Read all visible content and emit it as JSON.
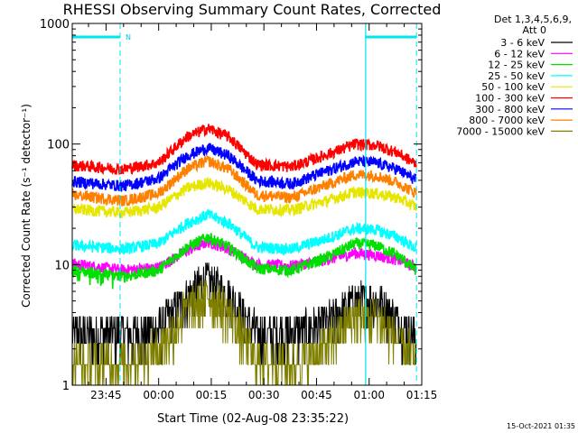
{
  "chart_data": {
    "type": "line",
    "title": "RHESSI Observing Summary Count Rates, Corrected",
    "xlabel": "Start Time (02-Aug-08 23:35:22)",
    "ylabel": "Corrected Count Rate (s⁻¹ detector⁻¹)",
    "yscale": "log",
    "xlim": [
      "23:35:22",
      "01:15:00"
    ],
    "ylim": [
      1,
      1000
    ],
    "x_ticks": [
      "23:45",
      "00:00",
      "00:15",
      "00:30",
      "00:45",
      "01:00",
      "01:15"
    ],
    "x_tick_minutes": [
      -15,
      0,
      15,
      30,
      45,
      60,
      75
    ],
    "y_ticks": [
      "1",
      "10",
      "100",
      "1000"
    ],
    "y_tick_values": [
      1,
      10,
      100,
      1000
    ],
    "legend_header": [
      "Det 1,3,4,5,6,9,",
      "Att 0"
    ],
    "legend_position": "right",
    "annotation": "15-Oct-2021 01:35",
    "marker_label": "N",
    "time_range_minutes": [
      -24.633,
      75.0
    ],
    "night_intervals": [
      [
        -24.633,
        -11.0
      ],
      [
        59.0,
        73.5
      ]
    ],
    "series": [
      {
        "name": "3 - 6 keV",
        "color": "#000000",
        "profile": [
          [
            -24.6,
            2.7
          ],
          [
            -10,
            2.7
          ],
          [
            0,
            2.9
          ],
          [
            8,
            5.5
          ],
          [
            14,
            7.5
          ],
          [
            20,
            5.5
          ],
          [
            28,
            2.7
          ],
          [
            38,
            2.7
          ],
          [
            48,
            3.3
          ],
          [
            56,
            5.0
          ],
          [
            63,
            5.0
          ],
          [
            70,
            3.0
          ],
          [
            73.5,
            2.5
          ]
        ]
      },
      {
        "name": "6 - 12 keV",
        "color": "#ff00ff",
        "profile": [
          [
            -24.6,
            10.2
          ],
          [
            -10,
            9.0
          ],
          [
            0,
            9.5
          ],
          [
            8,
            13.0
          ],
          [
            14,
            15.5
          ],
          [
            20,
            13.5
          ],
          [
            28,
            10.0
          ],
          [
            38,
            9.8
          ],
          [
            48,
            11.0
          ],
          [
            56,
            12.5
          ],
          [
            62,
            12.0
          ],
          [
            68,
            11.0
          ],
          [
            73.5,
            9.5
          ]
        ]
      },
      {
        "name": "12 - 25 keV",
        "color": "#00e000",
        "profile": [
          [
            -24.6,
            9.0
          ],
          [
            -10,
            8.0
          ],
          [
            0,
            9.0
          ],
          [
            8,
            14.0
          ],
          [
            14,
            17.0
          ],
          [
            20,
            14.0
          ],
          [
            28,
            9.3
          ],
          [
            38,
            9.0
          ],
          [
            48,
            11.5
          ],
          [
            56,
            15.0
          ],
          [
            62,
            14.5
          ],
          [
            68,
            12.0
          ],
          [
            73.5,
            9.0
          ]
        ]
      },
      {
        "name": "25 - 50 keV",
        "color": "#00ffff",
        "profile": [
          [
            -24.6,
            14.5
          ],
          [
            -10,
            13.5
          ],
          [
            0,
            15.0
          ],
          [
            8,
            22.0
          ],
          [
            14,
            26.0
          ],
          [
            20,
            22.0
          ],
          [
            28,
            14.0
          ],
          [
            38,
            13.5
          ],
          [
            48,
            16.5
          ],
          [
            56,
            20.0
          ],
          [
            62,
            19.5
          ],
          [
            68,
            17.0
          ],
          [
            73.5,
            13.5
          ]
        ]
      },
      {
        "name": "50 - 100 keV",
        "color": "#e6e600",
        "profile": [
          [
            -24.6,
            29.0
          ],
          [
            -10,
            27.0
          ],
          [
            0,
            30.0
          ],
          [
            8,
            43.0
          ],
          [
            14,
            48.0
          ],
          [
            20,
            42.0
          ],
          [
            28,
            29.0
          ],
          [
            38,
            28.5
          ],
          [
            48,
            34.0
          ],
          [
            56,
            40.0
          ],
          [
            62,
            39.0
          ],
          [
            68,
            36.0
          ],
          [
            73.5,
            30.0
          ]
        ]
      },
      {
        "name": "100 - 300 keV",
        "color": "#ff0000",
        "profile": [
          [
            -24.6,
            67.0
          ],
          [
            -10,
            62.0
          ],
          [
            0,
            70.0
          ],
          [
            8,
            115.0
          ],
          [
            14,
            135.0
          ],
          [
            20,
            115.0
          ],
          [
            28,
            68.0
          ],
          [
            38,
            65.0
          ],
          [
            48,
            82.0
          ],
          [
            56,
            100.0
          ],
          [
            62,
            98.0
          ],
          [
            68,
            85.0
          ],
          [
            73.5,
            68.0
          ]
        ]
      },
      {
        "name": "300 - 800 keV",
        "color": "#0000ff",
        "profile": [
          [
            -24.6,
            49.0
          ],
          [
            -10,
            45.0
          ],
          [
            0,
            52.0
          ],
          [
            8,
            80.0
          ],
          [
            14,
            93.0
          ],
          [
            20,
            80.0
          ],
          [
            28,
            50.0
          ],
          [
            38,
            47.0
          ],
          [
            48,
            60.0
          ],
          [
            56,
            72.0
          ],
          [
            62,
            70.0
          ],
          [
            68,
            62.0
          ],
          [
            73.5,
            50.0
          ]
        ]
      },
      {
        "name": "800 - 7000 keV",
        "color": "#ff8000",
        "profile": [
          [
            -24.6,
            38.0
          ],
          [
            -10,
            34.0
          ],
          [
            0,
            39.0
          ],
          [
            8,
            62.0
          ],
          [
            14,
            73.0
          ],
          [
            20,
            62.0
          ],
          [
            28,
            38.0
          ],
          [
            38,
            36.0
          ],
          [
            48,
            46.0
          ],
          [
            56,
            56.0
          ],
          [
            62,
            55.0
          ],
          [
            68,
            48.0
          ],
          [
            73.5,
            39.0
          ]
        ]
      },
      {
        "name": "7000 - 15000 keV",
        "color": "#808000",
        "profile": [
          [
            -24.6,
            1.6
          ],
          [
            -10,
            1.5
          ],
          [
            0,
            2.0
          ],
          [
            8,
            4.3
          ],
          [
            14,
            5.5
          ],
          [
            20,
            4.2
          ],
          [
            28,
            1.6
          ],
          [
            38,
            1.5
          ],
          [
            48,
            2.2
          ],
          [
            56,
            3.8
          ],
          [
            63,
            3.6
          ],
          [
            70,
            2.1
          ],
          [
            73.5,
            1.6
          ]
        ]
      }
    ]
  }
}
